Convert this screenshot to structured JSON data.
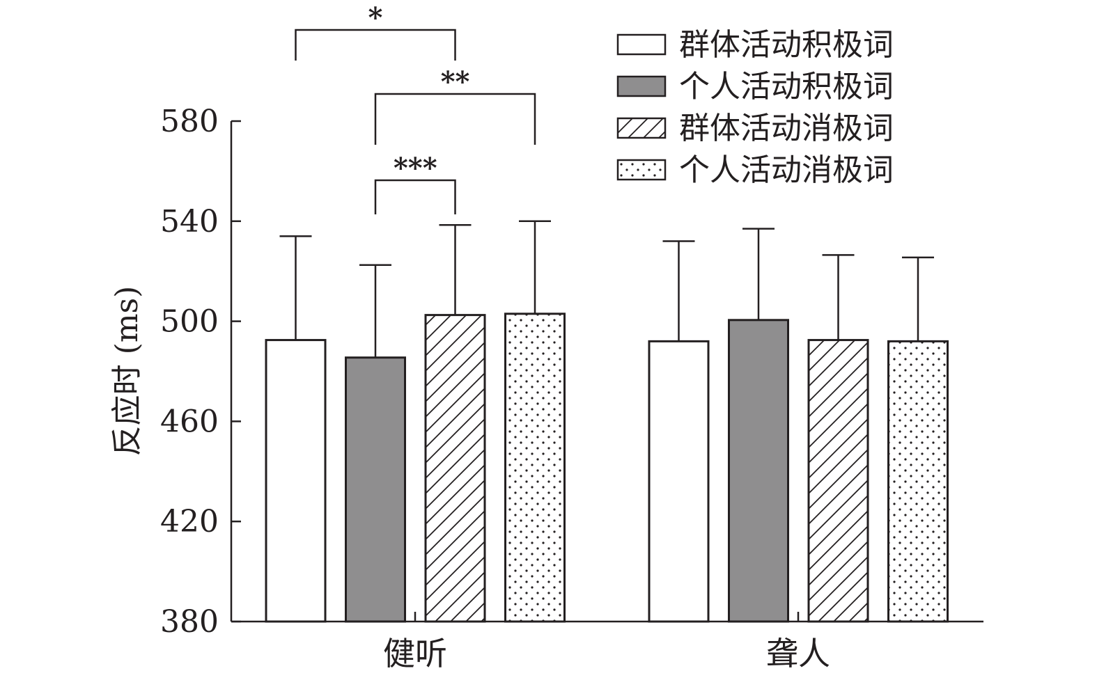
{
  "chart_data": {
    "type": "bar",
    "title": "",
    "xlabel": "",
    "ylabel": "反应时 (ms)",
    "ylim": [
      380,
      580
    ],
    "yticks": [
      380,
      420,
      460,
      500,
      540,
      580
    ],
    "categories": [
      "健听",
      "聋人"
    ],
    "legend_position": "top-right",
    "grid": false,
    "series": [
      {
        "name": "群体活动积极词",
        "pattern": "solid-white",
        "values": [
          492.5,
          492.0
        ],
        "errors": [
          41.5,
          40.0
        ]
      },
      {
        "name": "个人活动积极词",
        "pattern": "solid-gray",
        "values": [
          485.5,
          500.5
        ],
        "errors": [
          37.0,
          36.5
        ]
      },
      {
        "name": "群体活动消极词",
        "pattern": "hatch",
        "values": [
          502.5,
          492.5
        ],
        "errors": [
          36.0,
          34.0
        ]
      },
      {
        "name": "个人活动消极词",
        "pattern": "dots",
        "values": [
          503.0,
          492.0
        ],
        "errors": [
          37.0,
          33.5
        ]
      }
    ],
    "significance": [
      {
        "label": "*",
        "category": 0,
        "from_series": 0,
        "to_series": 2
      },
      {
        "label": "**",
        "category": 0,
        "from_series": 1,
        "to_series": 3
      },
      {
        "label": "***",
        "category": 0,
        "from_series": 1,
        "to_series": 2
      }
    ],
    "colors": {
      "axis": "#231f20",
      "gray_fill": "#8f8e8f",
      "white_fill": "#ffffff"
    }
  }
}
